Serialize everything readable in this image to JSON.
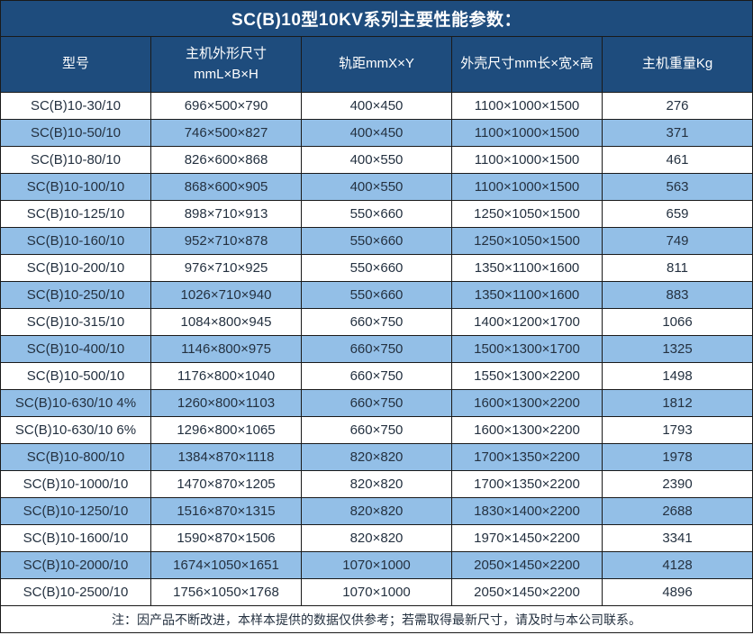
{
  "title": "SC(B)10型10KV系列主要性能参数：",
  "colors": {
    "header_bg": "#1e4c7d",
    "alt_row_bg": "#93bfe7",
    "border": "#1a1a1a",
    "header_text": "#ffffff",
    "body_text": "#243140"
  },
  "table": {
    "columns": [
      {
        "key": "model",
        "label": "型号",
        "label2": ""
      },
      {
        "key": "unit-size",
        "label": "主机外形尺寸",
        "label2": "mmL×B×H"
      },
      {
        "key": "gauge",
        "label": "轨距mmX×Y",
        "label2": ""
      },
      {
        "key": "shell-size",
        "label": "外壳尺寸mm长×宽×高",
        "label2": ""
      },
      {
        "key": "weight",
        "label": "主机重量Kg",
        "label2": ""
      }
    ],
    "rows": [
      [
        "SC(B)10-30/10",
        "696×500×790",
        "400×450",
        "1100×1000×1500",
        "276"
      ],
      [
        "SC(B)10-50/10",
        "746×500×827",
        "400×450",
        "1100×1000×1500",
        "371"
      ],
      [
        "SC(B)10-80/10",
        "826×600×868",
        "400×550",
        "1100×1000×1500",
        "461"
      ],
      [
        "SC(B)10-100/10",
        "868×600×905",
        "400×550",
        "1100×1000×1500",
        "563"
      ],
      [
        "SC(B)10-125/10",
        "898×710×913",
        "550×660",
        "1250×1050×1500",
        "659"
      ],
      [
        "SC(B)10-160/10",
        "952×710×878",
        "550×660",
        "1250×1050×1500",
        "749"
      ],
      [
        "SC(B)10-200/10",
        "976×710×925",
        "550×660",
        "1350×1100×1600",
        "811"
      ],
      [
        "SC(B)10-250/10",
        "1026×710×940",
        "550×660",
        "1350×1100×1600",
        "883"
      ],
      [
        "SC(B)10-315/10",
        "1084×800×945",
        "660×750",
        "1400×1200×1700",
        "1066"
      ],
      [
        "SC(B)10-400/10",
        "1146×800×975",
        "660×750",
        "1500×1300×1700",
        "1325"
      ],
      [
        "SC(B)10-500/10",
        "1176×800×1040",
        "660×750",
        "1550×1300×2200",
        "1498"
      ],
      [
        "SC(B)10-630/10 4%",
        "1260×800×1103",
        "660×750",
        "1600×1300×2200",
        "1812"
      ],
      [
        "SC(B)10-630/10 6%",
        "1296×800×1065",
        "660×750",
        "1600×1300×2200",
        "1793"
      ],
      [
        "SC(B)10-800/10",
        "1384×870×1118",
        "820×820",
        "1700×1350×2200",
        "1978"
      ],
      [
        "SC(B)10-1000/10",
        "1470×870×1205",
        "820×820",
        "1700×1350×2200",
        "2390"
      ],
      [
        "SC(B)10-1250/10",
        "1516×870×1315",
        "820×820",
        "1830×1400×2200",
        "2688"
      ],
      [
        "SC(B)10-1600/10",
        "1590×870×1506",
        "820×820",
        "1970×1450×2200",
        "3341"
      ],
      [
        "SC(B)10-2000/10",
        "1674×1050×1651",
        "1070×1000",
        "2050×1450×2200",
        "4128"
      ],
      [
        "SC(B)10-2500/10",
        "1756×1050×1768",
        "1070×1000",
        "2050×1450×2200",
        "4896"
      ]
    ],
    "note": "注：因产品不断改进，本样本提供的数据仅供参考；若需取得最新尺寸，请及时与本公司联系。"
  }
}
